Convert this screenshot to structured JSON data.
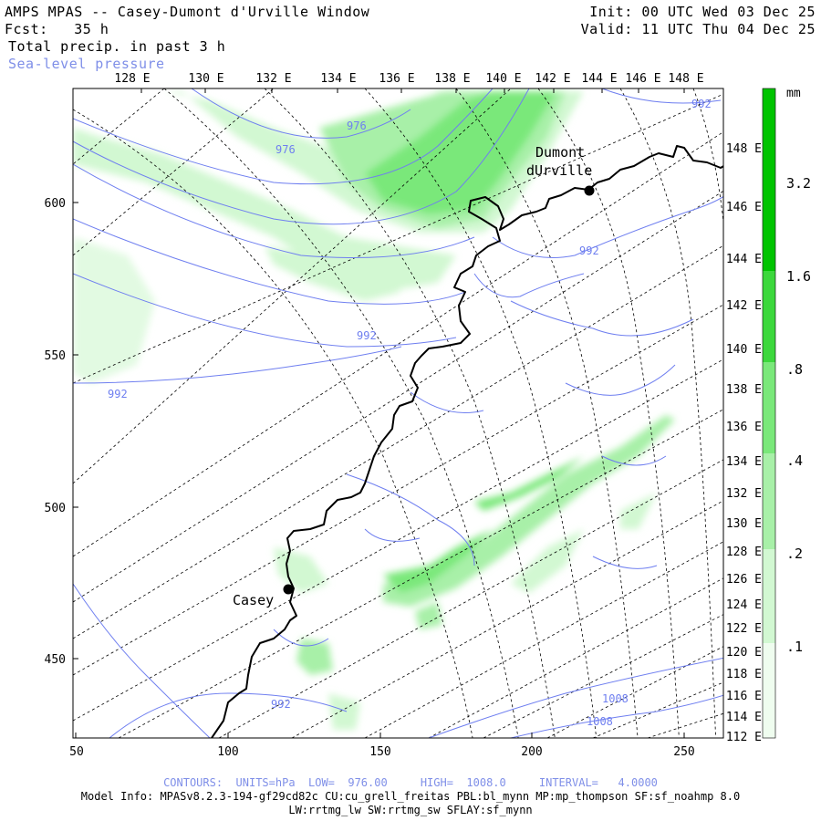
{
  "header": {
    "title": "AMPS MPAS -- Casey-Dumont d'Urville Window",
    "fcst_label": "Fcst:",
    "fcst_value": "35 h",
    "field": "Total precip. in past 3 h",
    "overlay": "Sea-level pressure",
    "init_label": "Init:",
    "init_value": "00 UTC Wed 03 Dec 25",
    "valid_label": "Valid:",
    "valid_value": "11 UTC Thu 04 Dec 25"
  },
  "top_longitude_labels": [
    "128 E",
    "130 E",
    "132 E",
    "134 E",
    "136 E",
    "138 E",
    "140 E",
    "142 E",
    "144 E",
    "146 E",
    "148 E"
  ],
  "right_longitude_labels": [
    "148 E",
    "146 E",
    "144 E",
    "142 E",
    "140 E",
    "138 E",
    "136 E",
    "134 E",
    "132 E",
    "130 E",
    "128 E",
    "126 E",
    "124 E",
    "122 E",
    "120 E",
    "118 E",
    "116 E",
    "114 E",
    "112 E"
  ],
  "x_axis_ticks": [
    "50",
    "100",
    "150",
    "200",
    "250"
  ],
  "y_axis_ticks": [
    "600",
    "550",
    "500",
    "450"
  ],
  "places": [
    {
      "name": "Dumont dUrville"
    },
    {
      "name": "Casey"
    }
  ],
  "contour_labels": [
    "976",
    "976",
    "992",
    "992",
    "992",
    "992",
    "992",
    "1008",
    "1008"
  ],
  "legend": {
    "unit": "mm",
    "values": [
      "3.2",
      "1.6",
      ".8",
      ".4",
      ".2",
      ".1"
    ],
    "colors": [
      "#00c400",
      "#3cd83c",
      "#7ae87a",
      "#a8f0a8",
      "#d2f8d2",
      "#effdef"
    ]
  },
  "footer": {
    "contours": "CONTOURS:  UNITS=hPa  LOW=  976.00     HIGH=  1008.0     INTERVAL=   4.0000",
    "model_info": "Model Info: MPASv8.2.3-194-gf29cd82c CU:cu_grell_freitas PBL:bl_mynn MP:mp_thompson SF:sf_noahmp 8.0",
    "model_info2": "LW:rrtmg_lw SW:rrtmg_sw SFLAY:sf_mynn"
  },
  "colors": {
    "contour": "#6f7ff0",
    "coast": "#000000",
    "precip_light": "#d2f8d2",
    "precip_mid": "#a8f0a8",
    "precip_heavy": "#7ae87a"
  }
}
